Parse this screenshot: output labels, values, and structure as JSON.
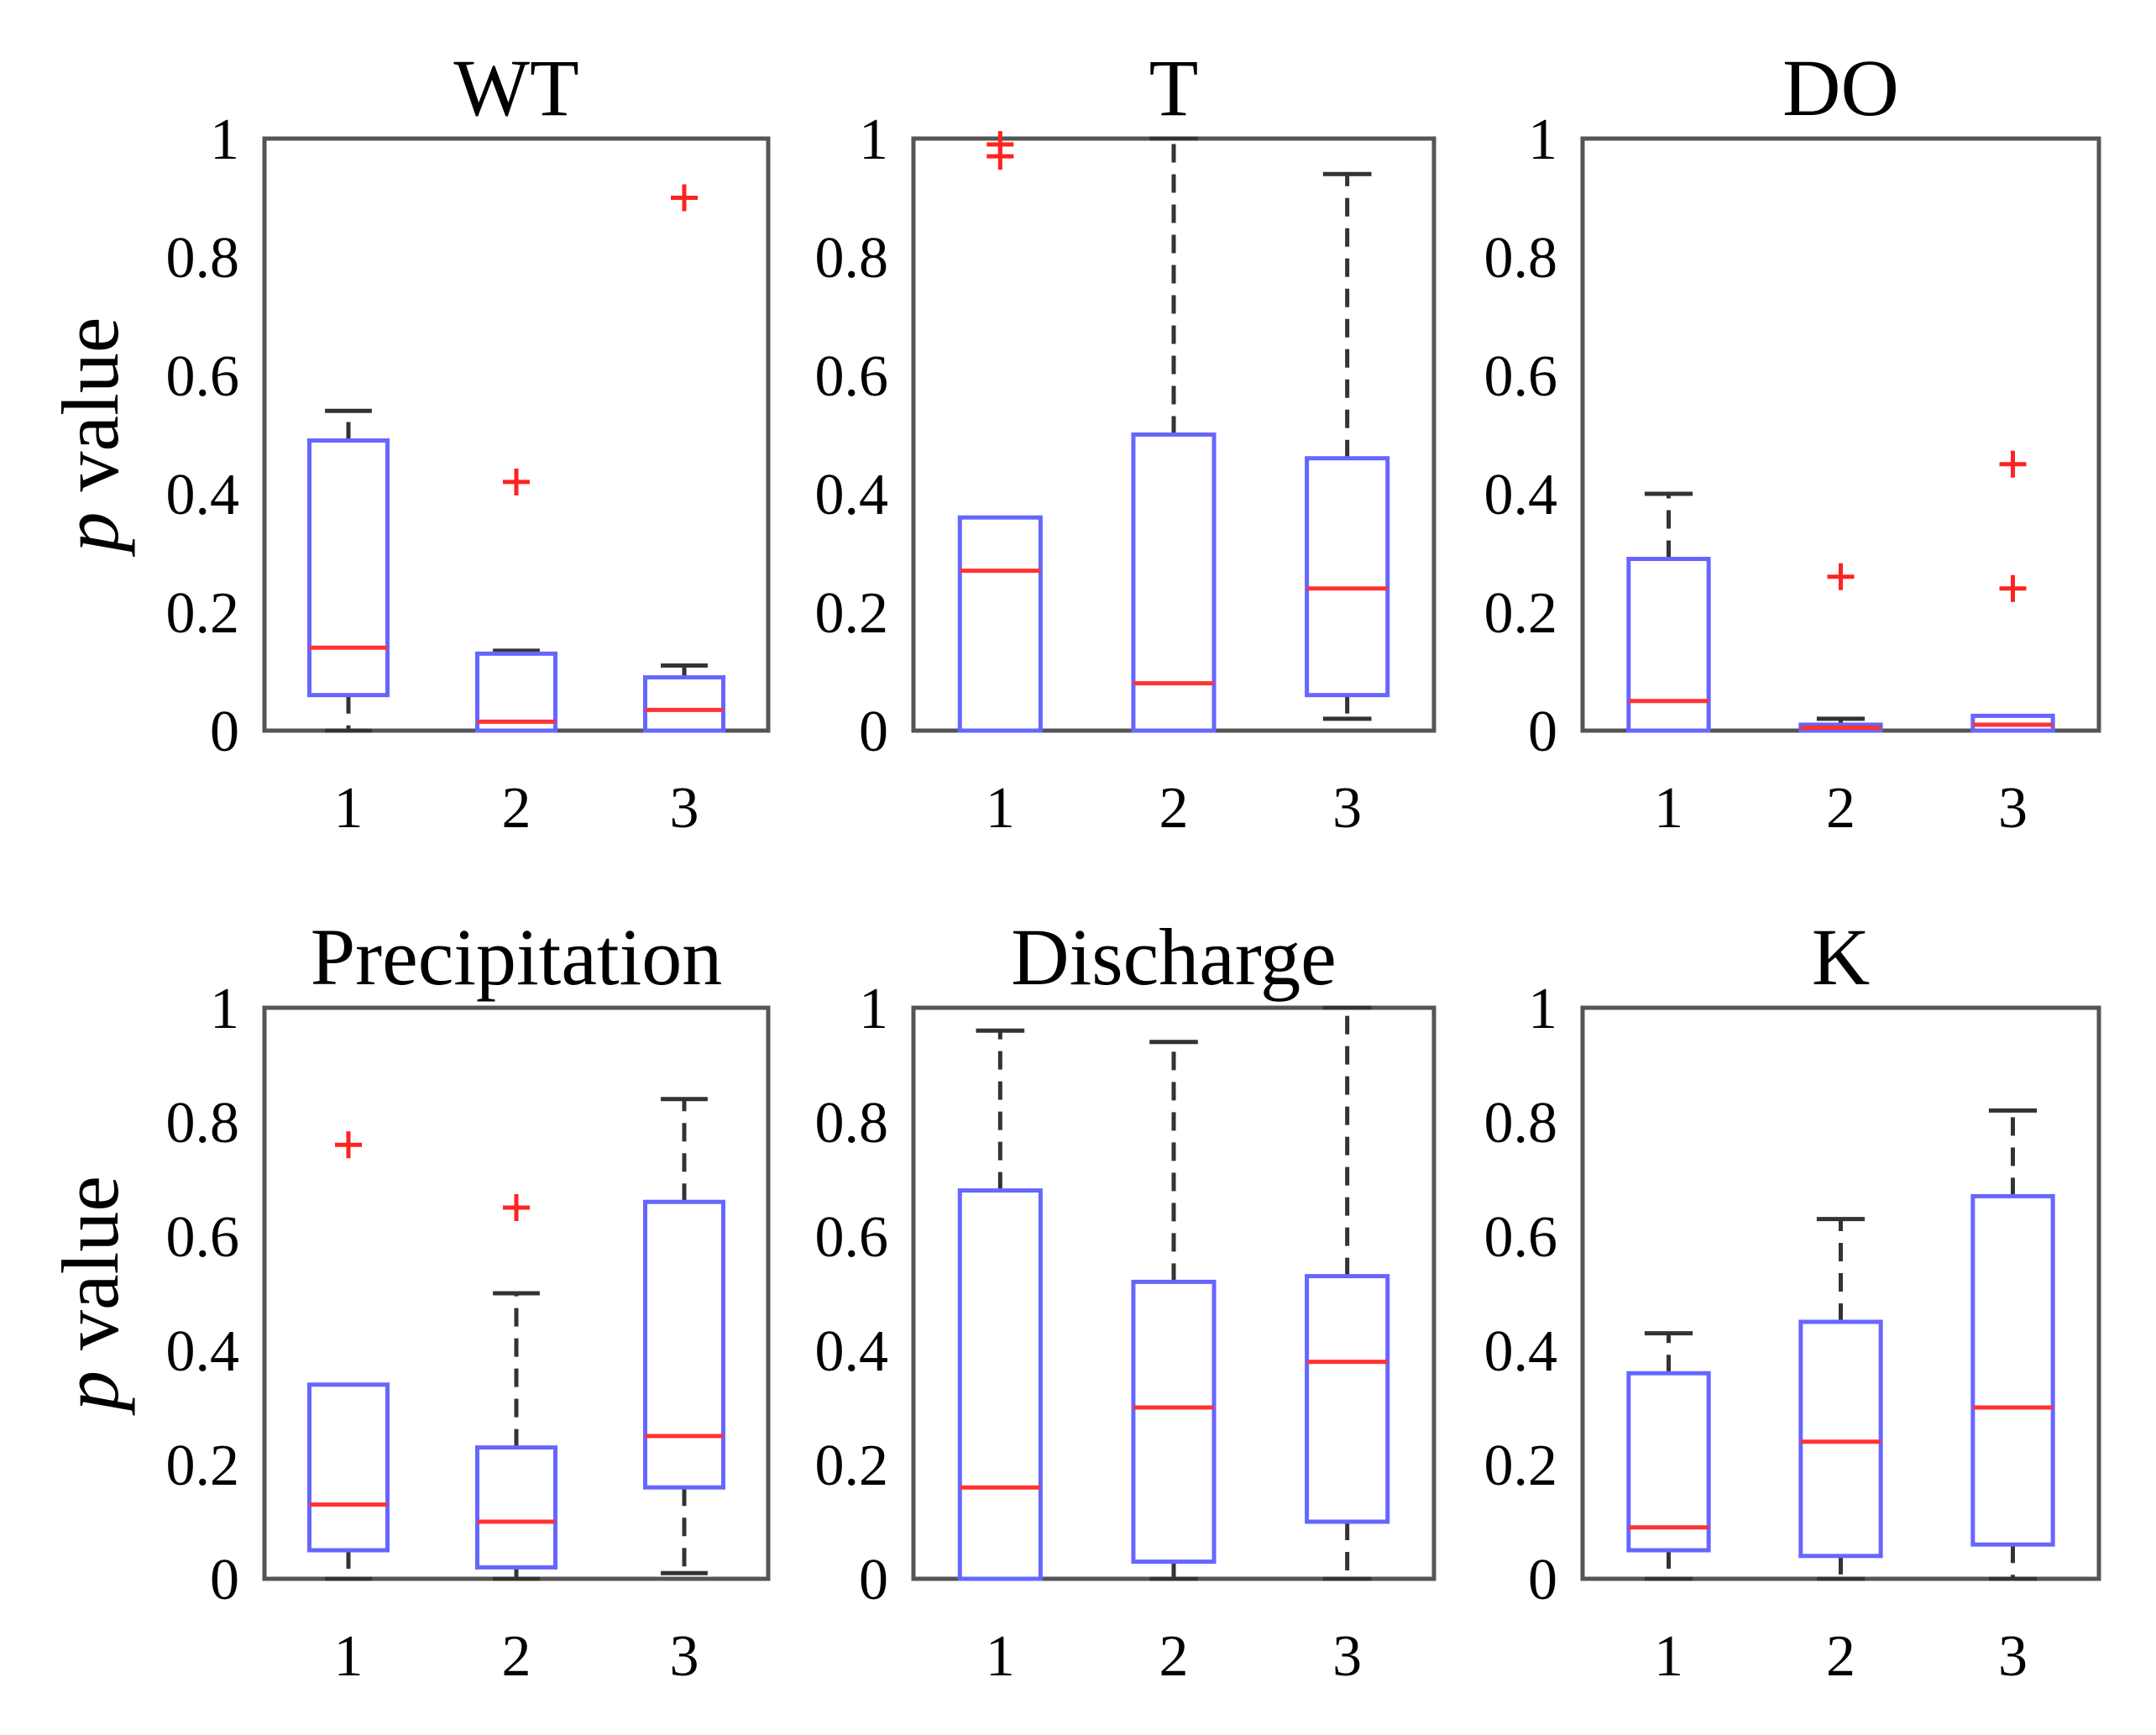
{
  "chart_data": [
    {
      "type": "box",
      "title": "WT",
      "ylabel": "p value",
      "categories": [
        "1",
        "2",
        "3"
      ],
      "yticks": [
        "0",
        "0.2",
        "0.4",
        "0.6",
        "0.8",
        "1"
      ],
      "ylim": [
        0,
        1
      ],
      "boxes": [
        {
          "min": 0.0,
          "q1": 0.06,
          "median": 0.14,
          "q3": 0.49,
          "max": 0.54,
          "outliers": []
        },
        {
          "min": 0.0,
          "q1": 0.0,
          "median": 0.015,
          "q3": 0.13,
          "max": 0.135,
          "outliers": [
            0.42
          ]
        },
        {
          "min": 0.0,
          "q1": 0.0,
          "median": 0.035,
          "q3": 0.09,
          "max": 0.11,
          "outliers": [
            0.9
          ]
        }
      ]
    },
    {
      "type": "box",
      "title": "T",
      "ylabel": "",
      "categories": [
        "1",
        "2",
        "3"
      ],
      "yticks": [
        "0",
        "0.2",
        "0.4",
        "0.6",
        "0.8",
        "1"
      ],
      "ylim": [
        0,
        1
      ],
      "boxes": [
        {
          "min": 0.0,
          "q1": 0.0,
          "median": 0.27,
          "q3": 0.36,
          "max": 0.36,
          "outliers": [
            0.99,
            0.97
          ]
        },
        {
          "min": 0.0,
          "q1": 0.0,
          "median": 0.08,
          "q3": 0.5,
          "max": 1.0,
          "outliers": []
        },
        {
          "min": 0.02,
          "q1": 0.06,
          "median": 0.24,
          "q3": 0.46,
          "max": 0.94,
          "outliers": []
        }
      ]
    },
    {
      "type": "box",
      "title": "DO",
      "ylabel": "",
      "categories": [
        "1",
        "2",
        "3"
      ],
      "yticks": [
        "0",
        "0.2",
        "0.4",
        "0.6",
        "0.8",
        "1"
      ],
      "ylim": [
        0,
        1
      ],
      "boxes": [
        {
          "min": 0.0,
          "q1": 0.0,
          "median": 0.05,
          "q3": 0.29,
          "max": 0.4,
          "outliers": []
        },
        {
          "min": 0.0,
          "q1": 0.0,
          "median": 0.005,
          "q3": 0.01,
          "max": 0.02,
          "outliers": [
            0.26
          ]
        },
        {
          "min": 0.0,
          "q1": 0.0,
          "median": 0.01,
          "q3": 0.025,
          "max": 0.025,
          "outliers": [
            0.45,
            0.24
          ]
        }
      ]
    },
    {
      "type": "box",
      "title": "Precipitation",
      "ylabel": "p value",
      "categories": [
        "1",
        "2",
        "3"
      ],
      "yticks": [
        "0",
        "0.2",
        "0.4",
        "0.6",
        "0.8",
        "1"
      ],
      "ylim": [
        0,
        1
      ],
      "boxes": [
        {
          "min": 0.0,
          "q1": 0.05,
          "median": 0.13,
          "q3": 0.34,
          "max": 0.34,
          "outliers": [
            0.76
          ]
        },
        {
          "min": 0.0,
          "q1": 0.02,
          "median": 0.1,
          "q3": 0.23,
          "max": 0.5,
          "outliers": [
            0.65
          ]
        },
        {
          "min": 0.01,
          "q1": 0.16,
          "median": 0.25,
          "q3": 0.66,
          "max": 0.84,
          "outliers": []
        }
      ]
    },
    {
      "type": "box",
      "title": "Discharge",
      "ylabel": "",
      "categories": [
        "1",
        "2",
        "3"
      ],
      "yticks": [
        "0",
        "0.2",
        "0.4",
        "0.6",
        "0.8",
        "1"
      ],
      "ylim": [
        0,
        1
      ],
      "boxes": [
        {
          "min": 0.0,
          "q1": 0.0,
          "median": 0.16,
          "q3": 0.68,
          "max": 0.96,
          "outliers": []
        },
        {
          "min": 0.0,
          "q1": 0.03,
          "median": 0.3,
          "q3": 0.52,
          "max": 0.94,
          "outliers": []
        },
        {
          "min": 0.0,
          "q1": 0.1,
          "median": 0.38,
          "q3": 0.53,
          "max": 1.0,
          "outliers": []
        }
      ]
    },
    {
      "type": "box",
      "title": "K",
      "ylabel": "",
      "categories": [
        "1",
        "2",
        "3"
      ],
      "yticks": [
        "0",
        "0.2",
        "0.4",
        "0.6",
        "0.8",
        "1"
      ],
      "ylim": [
        0,
        1
      ],
      "boxes": [
        {
          "min": 0.0,
          "q1": 0.05,
          "median": 0.09,
          "q3": 0.36,
          "max": 0.43,
          "outliers": []
        },
        {
          "min": 0.0,
          "q1": 0.04,
          "median": 0.24,
          "q3": 0.45,
          "max": 0.63,
          "outliers": []
        },
        {
          "min": 0.0,
          "q1": 0.06,
          "median": 0.3,
          "q3": 0.67,
          "max": 0.82,
          "outliers": []
        }
      ]
    }
  ],
  "colors": {
    "box": "#6666ff",
    "median": "#ff3333",
    "outlier": "#ff2222",
    "whisker": "#333333"
  }
}
